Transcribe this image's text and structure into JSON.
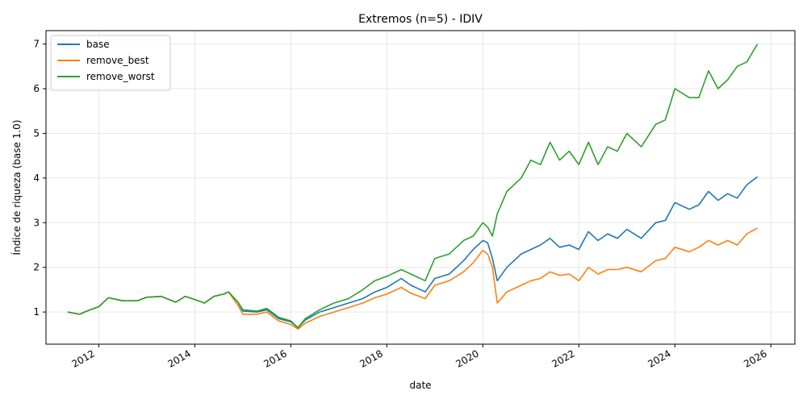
{
  "chart_data": {
    "type": "line",
    "title": "Extremos (n=5) - IDIV",
    "xlabel": "date",
    "ylabel": "Índice de riqueza (base 1.0)",
    "xlim": [
      2010.9,
      2026.5
    ],
    "ylim": [
      0.28,
      7.3
    ],
    "x_ticks": [
      2012,
      2014,
      2016,
      2018,
      2020,
      2022,
      2024,
      2026
    ],
    "y_ticks": [
      1,
      2,
      3,
      4,
      5,
      6,
      7
    ],
    "grid": true,
    "legend_position": "top-left",
    "x": [
      2011.35,
      2011.6,
      2011.75,
      2012.0,
      2012.2,
      2012.5,
      2012.8,
      2013.0,
      2013.3,
      2013.6,
      2013.8,
      2014.0,
      2014.2,
      2014.4,
      2014.6,
      2014.7,
      2014.9,
      2015.0,
      2015.3,
      2015.5,
      2015.75,
      2016.0,
      2016.15,
      2016.3,
      2016.6,
      2016.9,
      2017.2,
      2017.5,
      2017.75,
      2018.0,
      2018.3,
      2018.5,
      2018.8,
      2019.0,
      2019.3,
      2019.6,
      2019.8,
      2020.0,
      2020.1,
      2020.2,
      2020.3,
      2020.5,
      2020.8,
      2021.0,
      2021.2,
      2021.4,
      2021.6,
      2021.8,
      2022.0,
      2022.2,
      2022.4,
      2022.6,
      2022.8,
      2023.0,
      2023.3,
      2023.6,
      2023.8,
      2024.0,
      2024.3,
      2024.5,
      2024.7,
      2024.9,
      2025.1,
      2025.3,
      2025.5,
      2025.72
    ],
    "series": [
      {
        "name": "base",
        "color": "#1f77b4",
        "values": [
          1.0,
          0.95,
          1.02,
          1.12,
          1.32,
          1.25,
          1.25,
          1.33,
          1.35,
          1.22,
          1.35,
          1.28,
          1.2,
          1.35,
          1.4,
          1.45,
          1.22,
          1.02,
          1.0,
          1.05,
          0.85,
          0.78,
          0.65,
          0.82,
          1.0,
          1.1,
          1.2,
          1.3,
          1.45,
          1.55,
          1.75,
          1.6,
          1.45,
          1.75,
          1.85,
          2.15,
          2.4,
          2.6,
          2.55,
          2.2,
          1.7,
          2.0,
          2.3,
          2.4,
          2.5,
          2.65,
          2.45,
          2.5,
          2.4,
          2.8,
          2.6,
          2.75,
          2.65,
          2.85,
          2.65,
          3.0,
          3.05,
          3.45,
          3.3,
          3.4,
          3.7,
          3.5,
          3.65,
          3.55,
          3.85,
          4.03
        ]
      },
      {
        "name": "remove_best",
        "color": "#ff7f0e",
        "values": [
          1.0,
          0.95,
          1.02,
          1.12,
          1.32,
          1.25,
          1.25,
          1.33,
          1.35,
          1.22,
          1.35,
          1.28,
          1.2,
          1.35,
          1.4,
          1.45,
          1.15,
          0.95,
          0.95,
          1.0,
          0.8,
          0.72,
          0.62,
          0.75,
          0.9,
          1.0,
          1.1,
          1.2,
          1.32,
          1.4,
          1.55,
          1.42,
          1.3,
          1.6,
          1.7,
          1.9,
          2.1,
          2.38,
          2.3,
          2.0,
          1.2,
          1.45,
          1.6,
          1.7,
          1.75,
          1.9,
          1.82,
          1.85,
          1.7,
          2.0,
          1.85,
          1.95,
          1.95,
          2.0,
          1.9,
          2.15,
          2.2,
          2.45,
          2.35,
          2.45,
          2.6,
          2.5,
          2.6,
          2.5,
          2.75,
          2.88
        ]
      },
      {
        "name": "remove_worst",
        "color": "#2ca02c",
        "values": [
          1.0,
          0.95,
          1.02,
          1.12,
          1.32,
          1.25,
          1.25,
          1.33,
          1.35,
          1.22,
          1.35,
          1.28,
          1.2,
          1.35,
          1.4,
          1.45,
          1.22,
          1.05,
          1.02,
          1.08,
          0.88,
          0.8,
          0.65,
          0.85,
          1.05,
          1.2,
          1.3,
          1.5,
          1.7,
          1.8,
          1.95,
          1.85,
          1.7,
          2.2,
          2.3,
          2.6,
          2.7,
          3.0,
          2.9,
          2.7,
          3.2,
          3.7,
          4.0,
          4.4,
          4.3,
          4.8,
          4.4,
          4.6,
          4.3,
          4.8,
          4.3,
          4.7,
          4.6,
          5.0,
          4.7,
          5.2,
          5.3,
          6.0,
          5.8,
          5.8,
          6.4,
          6.0,
          6.2,
          6.5,
          6.6,
          7.0
        ]
      }
    ]
  }
}
